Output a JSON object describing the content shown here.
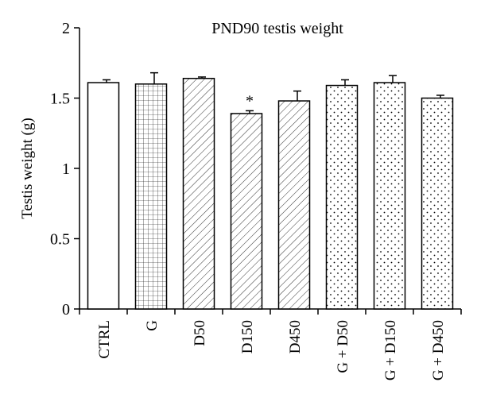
{
  "chart_data": {
    "type": "bar",
    "title": "PND90 testis weight",
    "ylabel": "Testis weight (g)",
    "xlabel": "",
    "ylim": [
      0,
      2
    ],
    "yticks": [
      "0",
      "0.5",
      "1",
      "1.5",
      "2"
    ],
    "grid": false,
    "categories": [
      "CTRL",
      "G",
      "D50",
      "D150",
      "D450",
      "G + D50",
      "G + D150",
      "G + D450"
    ],
    "values": [
      1.61,
      1.6,
      1.64,
      1.39,
      1.48,
      1.59,
      1.61,
      1.5
    ],
    "errors": [
      0.02,
      0.08,
      0.01,
      0.02,
      0.07,
      0.04,
      0.05,
      0.02
    ],
    "patterns": [
      "none",
      "grid",
      "diagonal",
      "diagonal",
      "diagonal",
      "dots",
      "dots",
      "dots"
    ],
    "significance": [
      {
        "category": "D150",
        "label": "*"
      }
    ],
    "colors": {
      "bar_edge": "#000000",
      "fill": "#ffffff"
    }
  }
}
